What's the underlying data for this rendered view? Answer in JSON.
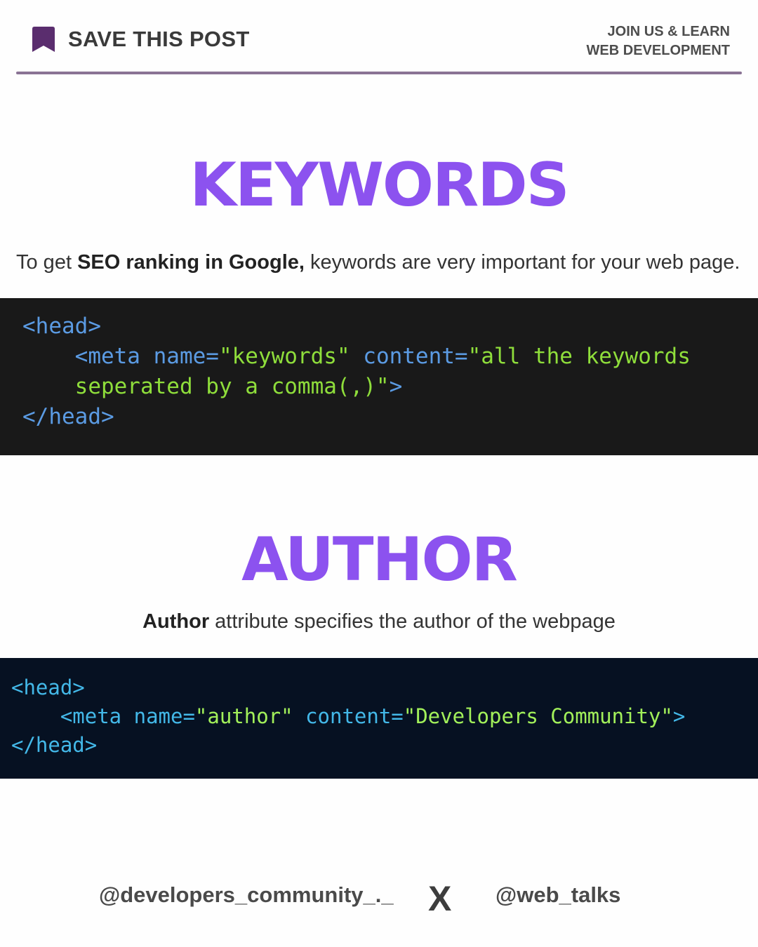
{
  "header": {
    "save_label": "SAVE THIS POST",
    "join_line1": "JOIN US & LEARN",
    "join_line2": "WEB DEVELOPMENT"
  },
  "colors": {
    "accent_purple": "#8c52ef",
    "divider": "#8a7394",
    "bookmark": "#5a2d6e",
    "code_bg_1": "#191919",
    "code_bg_2": "#061122"
  },
  "icons": {
    "bookmark": "bookmark-icon"
  },
  "sections": [
    {
      "title": "KEYWORDS",
      "desc_pre": "To get ",
      "desc_bold": "SEO ranking in Google,",
      "desc_post": " keywords are very important for your web page.",
      "code": {
        "l1": "<head>",
        "l2_tag": "<meta ",
        "l2_attr1": "name=",
        "l2_val1": "\"keywords\"",
        "l2_attr2": "content=",
        "l2_val2": "\"all the keywords",
        "l3_val": "seperated by a comma(,)\"",
        "l3_end": ">",
        "l4": "</head>"
      }
    },
    {
      "title": "AUTHOR",
      "desc_bold": "Author",
      "desc_post": " attribute specifies the author of the webpage",
      "code": {
        "l1": "<head>",
        "l2_tag": "<meta ",
        "l2_attr1": "name=",
        "l2_val1": "\"author\"",
        "l2_attr2": "content=",
        "l2_val2": "\"Developers Community\"",
        "l2_end": ">",
        "l3": "</head>"
      }
    }
  ],
  "footer": {
    "left_handle": "@developers_community_._",
    "separator": "X",
    "right_handle": "@web_talks"
  }
}
